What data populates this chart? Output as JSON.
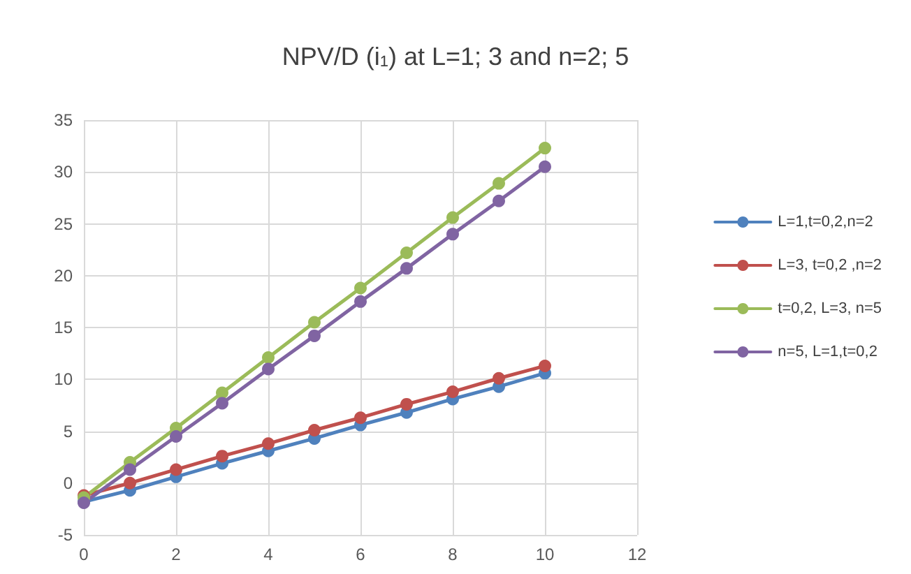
{
  "chart_data": {
    "type": "line",
    "title": "NPV/D (i$_{1}$) at L=1; 3 and n=2; 5",
    "x": [
      0,
      1,
      2,
      3,
      4,
      5,
      6,
      7,
      8,
      9,
      10
    ],
    "series": [
      {
        "name": "L=1,t=0,2,n=2",
        "color": "#4f81bd",
        "values": [
          -1.8,
          -0.7,
          0.6,
          1.9,
          3.1,
          4.3,
          5.6,
          6.8,
          8.1,
          9.3,
          10.6
        ]
      },
      {
        "name": "L=3, t=0,2 ,n=2",
        "color": "#c0504d",
        "values": [
          -1.2,
          0,
          1.3,
          2.6,
          3.8,
          5.1,
          6.3,
          7.6,
          8.8,
          10.1,
          11.3
        ]
      },
      {
        "name": "t=0,2, L=3, n=5",
        "color": "#9bbb59",
        "values": [
          -1.4,
          2.0,
          5.3,
          8.7,
          12.1,
          15.5,
          18.8,
          22.2,
          25.6,
          28.9,
          32.3
        ]
      },
      {
        "name": "n=5, L=1,t=0,2",
        "color": "#8064a2",
        "values": [
          -1.9,
          1.3,
          4.5,
          7.7,
          11.0,
          14.2,
          17.5,
          20.7,
          24.0,
          27.2,
          30.5
        ]
      }
    ],
    "xlim": [
      0,
      12
    ],
    "xticks": [
      0,
      2,
      4,
      6,
      8,
      10,
      12
    ],
    "ylim": [
      -5,
      35
    ],
    "yticks": [
      -5,
      0,
      5,
      10,
      15,
      20,
      25,
      30,
      35
    ],
    "grid": true,
    "legend": "right",
    "marker": "circle",
    "line_style": "solid"
  }
}
